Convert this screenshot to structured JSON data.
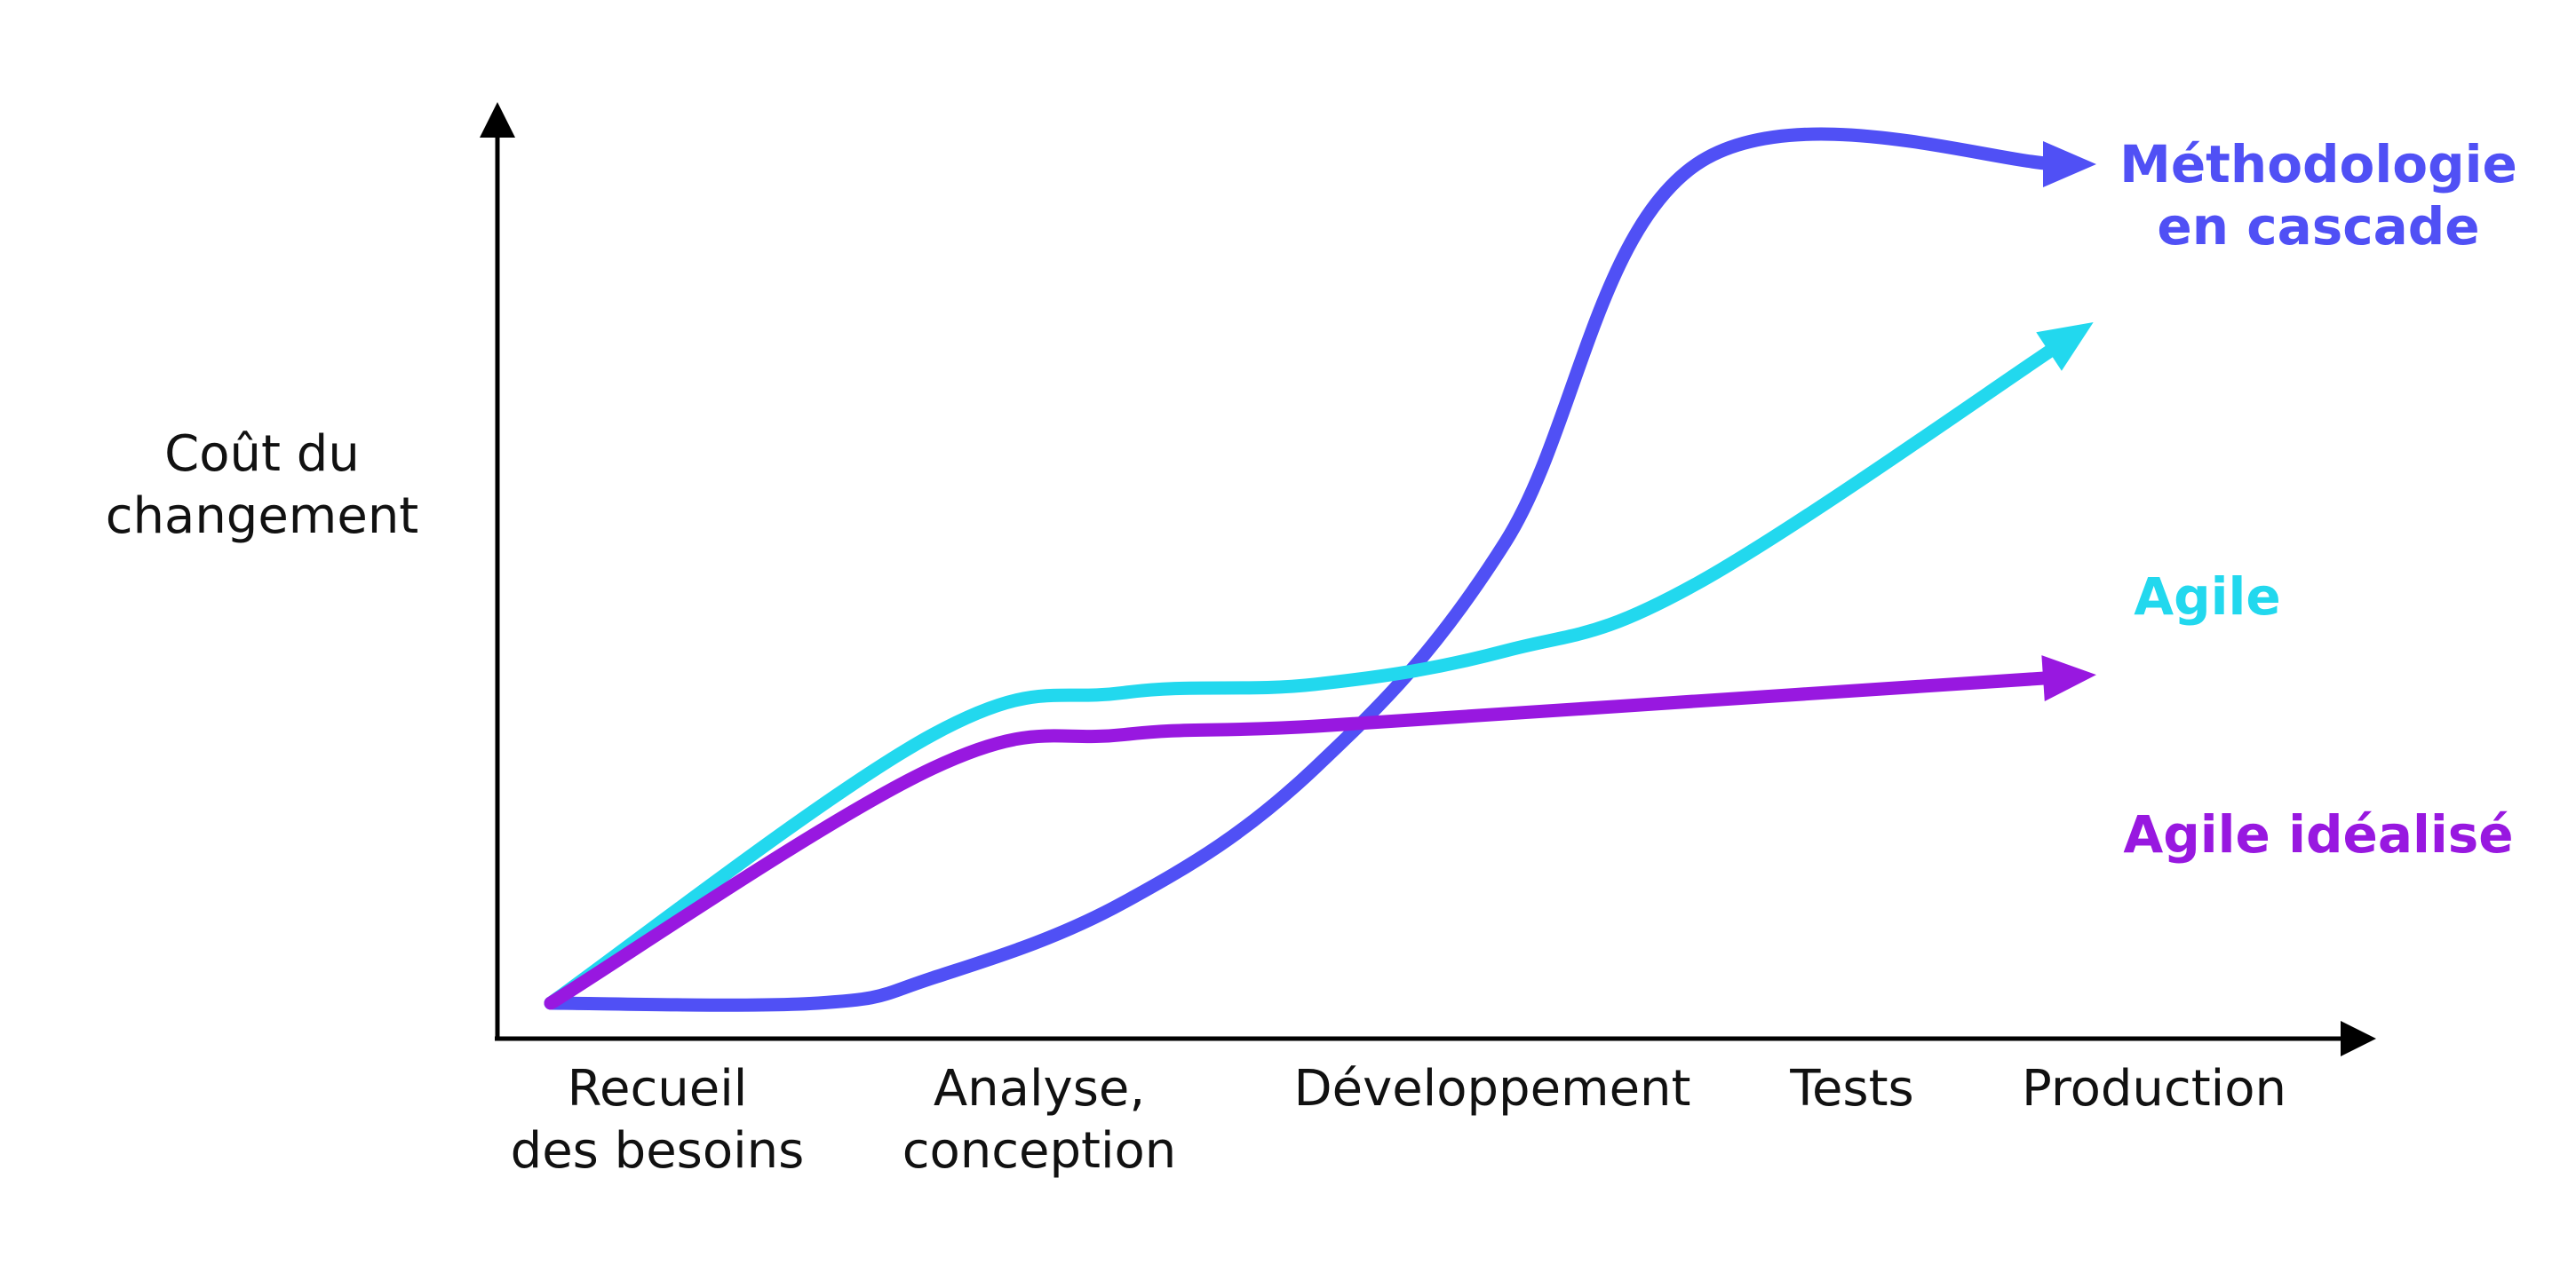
{
  "chart_data": {
    "type": "line",
    "ylabel": [
      "Coût du",
      "changement"
    ],
    "categories": [
      [
        "Recueil",
        "des besoins"
      ],
      [
        "Analyse,",
        "conception"
      ],
      [
        "Développement"
      ],
      [
        "Tests"
      ],
      [
        "Production"
      ]
    ],
    "grid": false,
    "legend": "direct labels at line ends (right)",
    "series": [
      {
        "name": [
          "Méthodologie",
          "en cascade"
        ],
        "color": "#5050f5",
        "points": [
          [
            0,
            0.0
          ],
          [
            0.7,
            0.0
          ],
          [
            1.0,
            0.03
          ],
          [
            1.5,
            0.12
          ],
          [
            2.0,
            0.28
          ],
          [
            2.5,
            0.55
          ],
          [
            3.0,
            1.0
          ],
          [
            4.0,
            1.0
          ]
        ]
      },
      {
        "name": [
          "Agile"
        ],
        "color": "#22d8ee",
        "points": [
          [
            0,
            0.0
          ],
          [
            1.0,
            0.32
          ],
          [
            1.5,
            0.37
          ],
          [
            2.0,
            0.38
          ],
          [
            2.5,
            0.42
          ],
          [
            3.0,
            0.5
          ],
          [
            4.0,
            0.8
          ]
        ]
      },
      {
        "name": [
          "Agile idéalisé"
        ],
        "color": "#9818e0",
        "points": [
          [
            0,
            0.0
          ],
          [
            1.0,
            0.28
          ],
          [
            1.5,
            0.32
          ],
          [
            2.0,
            0.33
          ],
          [
            3.0,
            0.36
          ],
          [
            4.0,
            0.39
          ]
        ]
      }
    ],
    "series_values_note": ""
  }
}
